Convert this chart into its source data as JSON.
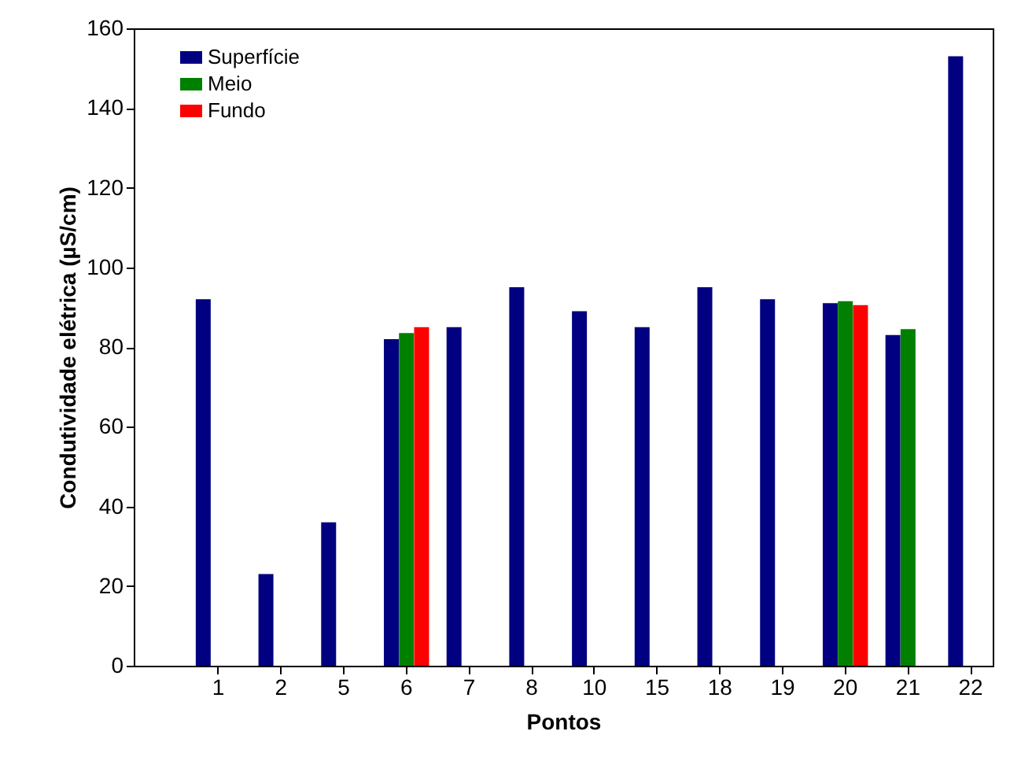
{
  "chart_data": {
    "type": "bar",
    "xlabel": "Pontos",
    "ylabel": "Condutividade elétrica (µS/cm)",
    "categories": [
      "1",
      "2",
      "5",
      "6",
      "7",
      "8",
      "10",
      "15",
      "18",
      "19",
      "20",
      "21",
      "22"
    ],
    "series": [
      {
        "name": "Superfície",
        "color": "#000080",
        "values": [
          92,
          23,
          36,
          82,
          85,
          95,
          89,
          85,
          95,
          92,
          91,
          83,
          153
        ]
      },
      {
        "name": "Meio",
        "color": "#008000",
        "values": [
          null,
          null,
          null,
          83.5,
          null,
          null,
          null,
          null,
          null,
          null,
          91.5,
          84.5,
          null
        ]
      },
      {
        "name": "Fundo",
        "color": "#ff0000",
        "values": [
          null,
          null,
          null,
          85,
          null,
          null,
          null,
          null,
          null,
          null,
          90.5,
          null,
          null
        ]
      }
    ],
    "ylim": [
      0,
      160
    ],
    "yticks": [
      0,
      20,
      40,
      60,
      80,
      100,
      120,
      140,
      160
    ],
    "grid": false,
    "legend": "top left"
  }
}
